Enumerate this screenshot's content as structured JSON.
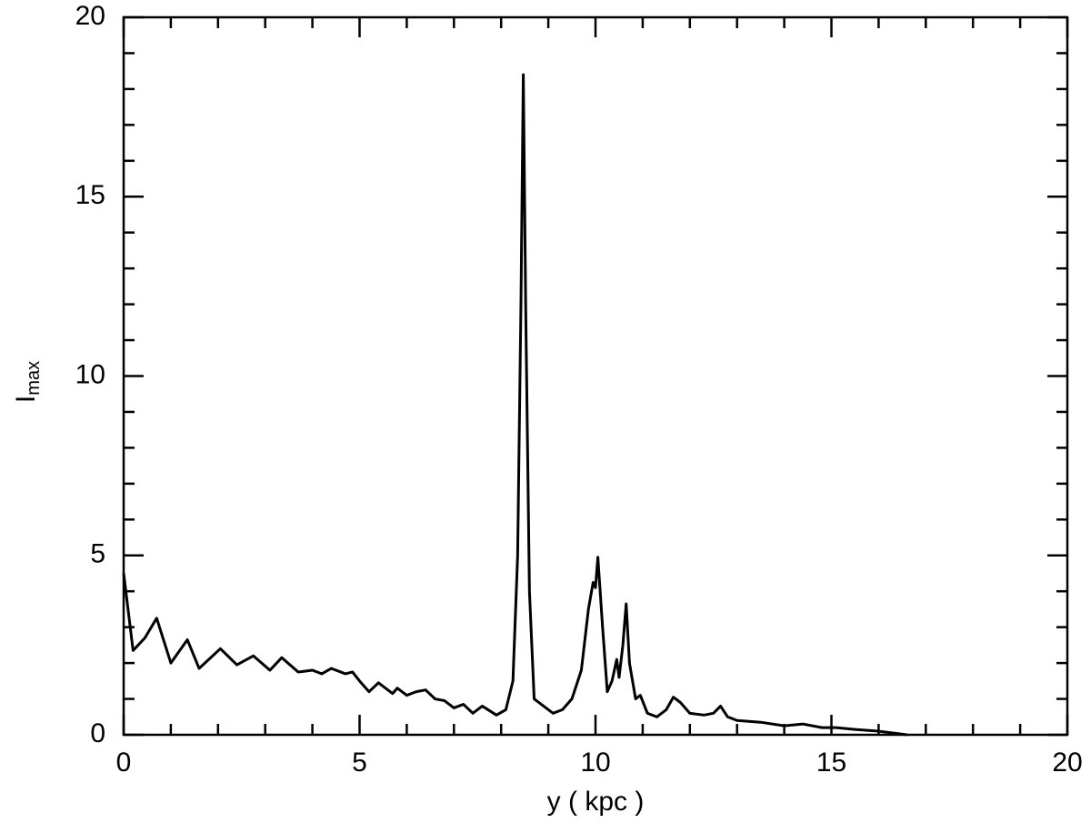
{
  "chart_data": {
    "type": "line",
    "xlabel": "y ( kpc )",
    "ylabel": "I",
    "ylabel_sub": "max",
    "xlim": [
      0,
      20
    ],
    "ylim": [
      0,
      20
    ],
    "xticks": [
      0,
      5,
      10,
      15,
      20
    ],
    "yticks": [
      0,
      5,
      10,
      15,
      20
    ],
    "xminorticks": [
      1,
      2,
      3,
      4,
      6,
      7,
      8,
      9,
      11,
      12,
      13,
      14,
      16,
      17,
      18,
      19
    ],
    "yminorticks": [
      1,
      2,
      3,
      4,
      6,
      7,
      8,
      9,
      11,
      12,
      13,
      14,
      16,
      17,
      18,
      19
    ],
    "ticks_all_sides": true,
    "series": [
      {
        "name": "I_max",
        "color": "#000000",
        "x": [
          0,
          0.2,
          0.45,
          0.7,
          1.0,
          1.35,
          1.6,
          2.05,
          2.4,
          2.75,
          3.1,
          3.35,
          3.7,
          4.0,
          4.2,
          4.4,
          4.7,
          4.85,
          5.0,
          5.2,
          5.4,
          5.7,
          5.8,
          6.0,
          6.2,
          6.4,
          6.6,
          6.8,
          7.0,
          7.2,
          7.4,
          7.6,
          7.9,
          8.1,
          8.25,
          8.35,
          8.42,
          8.47,
          8.52,
          8.6,
          8.7,
          8.9,
          9.1,
          9.3,
          9.5,
          9.7,
          9.85,
          9.95,
          10.0,
          10.05,
          10.15,
          10.25,
          10.35,
          10.45,
          10.5,
          10.58,
          10.65,
          10.72,
          10.85,
          10.95,
          11.1,
          11.3,
          11.5,
          11.65,
          11.8,
          12.0,
          12.3,
          12.5,
          12.65,
          12.8,
          13.0,
          13.5,
          14.0,
          14.4,
          14.8,
          15.1,
          15.5,
          16.0,
          16.3,
          16.6
        ],
        "values": [
          4.5,
          2.35,
          2.7,
          3.25,
          2.0,
          2.65,
          1.85,
          2.4,
          1.95,
          2.2,
          1.8,
          2.15,
          1.75,
          1.8,
          1.7,
          1.85,
          1.7,
          1.75,
          1.5,
          1.2,
          1.45,
          1.15,
          1.3,
          1.1,
          1.2,
          1.25,
          1.0,
          0.95,
          0.75,
          0.85,
          0.6,
          0.8,
          0.55,
          0.7,
          1.5,
          5,
          12,
          18.4,
          12,
          4,
          1.0,
          0.8,
          0.6,
          0.7,
          1.0,
          1.8,
          3.5,
          4.25,
          4.1,
          4.95,
          3.0,
          1.2,
          1.5,
          2.1,
          1.6,
          2.5,
          3.65,
          2.0,
          1.0,
          1.1,
          0.6,
          0.5,
          0.7,
          1.05,
          0.9,
          0.6,
          0.55,
          0.6,
          0.8,
          0.5,
          0.4,
          0.35,
          0.25,
          0.3,
          0.2,
          0.2,
          0.15,
          0.1,
          0.05,
          0
        ]
      }
    ]
  }
}
